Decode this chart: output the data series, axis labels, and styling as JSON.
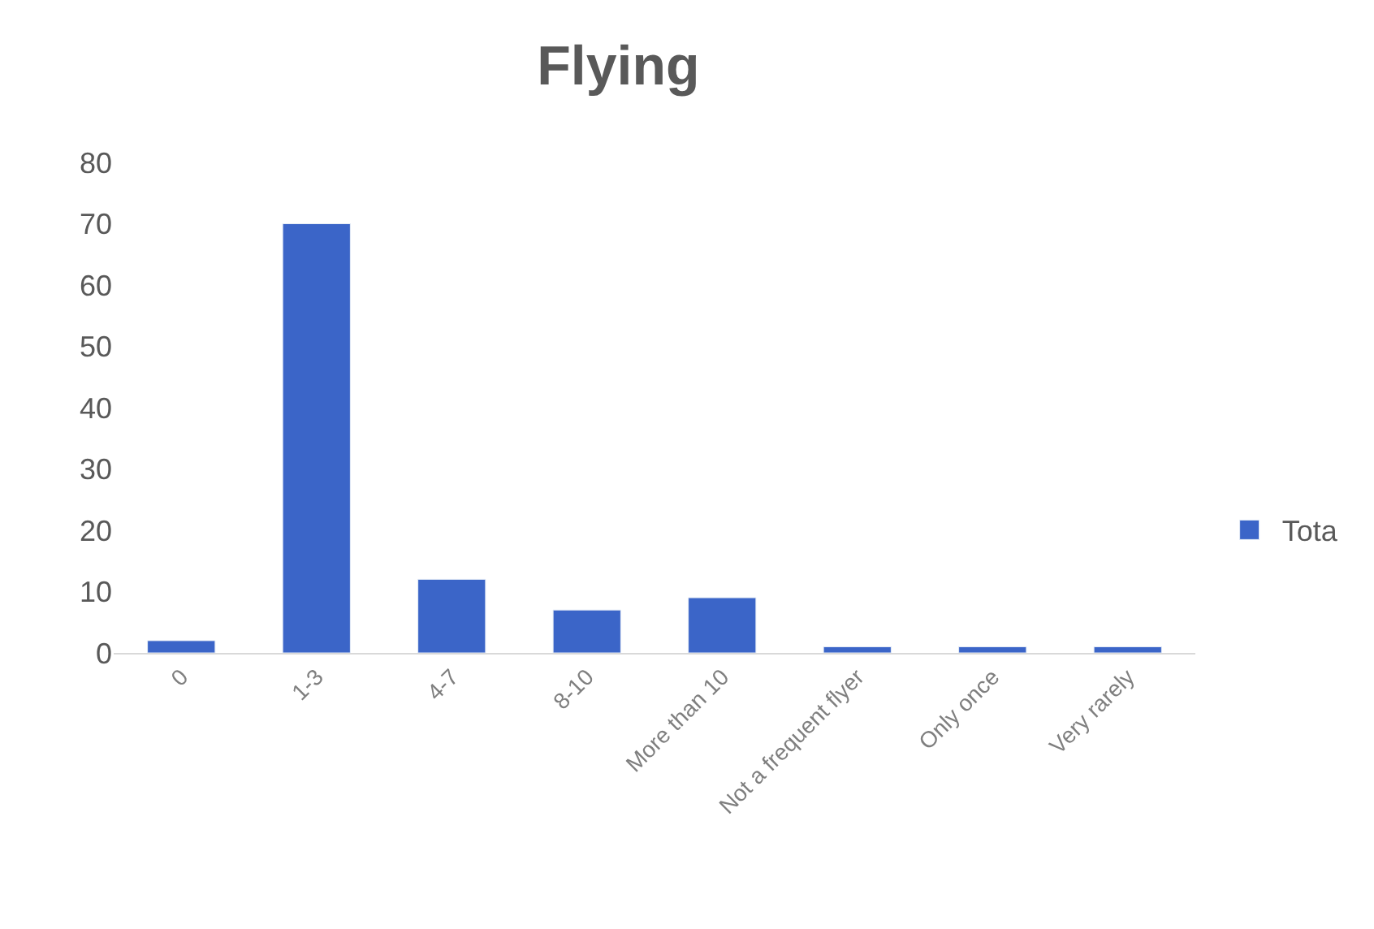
{
  "chart_data": {
    "type": "bar",
    "title": "Flying",
    "categories": [
      "0",
      "1-3",
      "4-7",
      "8-10",
      "More than 10",
      "Not a frequent flyer",
      "Only once",
      "Very rarely"
    ],
    "series": [
      {
        "name": "Tota",
        "color": "#3b65c8",
        "values": [
          2,
          70,
          12,
          7,
          9,
          1,
          1,
          1
        ]
      }
    ],
    "ylim": [
      0,
      80
    ],
    "yticks": [
      0,
      10,
      20,
      30,
      40,
      50,
      60,
      70,
      80
    ],
    "legend": "right"
  }
}
